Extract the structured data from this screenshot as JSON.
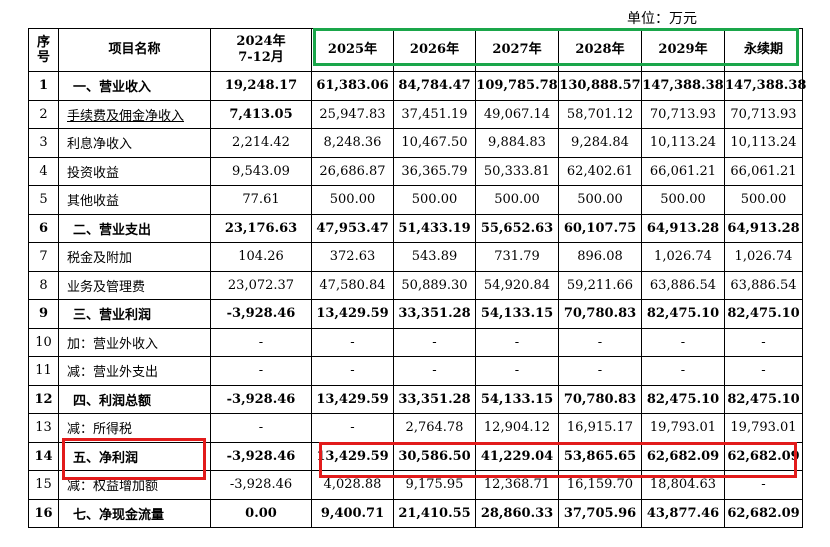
{
  "unit_label": "单位：万元",
  "headers": {
    "seq": "序号",
    "name": "项目名称",
    "c2024": "2024年\n7-12月",
    "years": [
      "2025年",
      "2026年",
      "2027年",
      "2028年",
      "2029年",
      "永续期"
    ]
  },
  "rows": [
    {
      "no": "1",
      "name": "一、营业收入",
      "bold": true,
      "vals": [
        "19,248.17",
        "61,383.06",
        "84,784.47",
        "109,785.78",
        "130,888.57",
        "147,388.38",
        "147,388.38"
      ]
    },
    {
      "no": "2",
      "name": "手续费及佣金净收入",
      "bold": false,
      "vals": [
        "7,413.05",
        "25,947.83",
        "37,451.19",
        "49,067.14",
        "58,701.12",
        "70,713.93",
        "70,713.93"
      ]
    },
    {
      "no": "3",
      "name": "利息净收入",
      "bold": false,
      "vals": [
        "2,214.42",
        "8,248.36",
        "10,467.50",
        "9,884.83",
        "9,284.84",
        "10,113.24",
        "10,113.24"
      ]
    },
    {
      "no": "4",
      "name": "投资收益",
      "bold": false,
      "vals": [
        "9,543.09",
        "26,686.87",
        "36,365.79",
        "50,333.81",
        "62,402.61",
        "66,061.21",
        "66,061.21"
      ]
    },
    {
      "no": "5",
      "name": "其他收益",
      "bold": false,
      "vals": [
        "77.61",
        "500.00",
        "500.00",
        "500.00",
        "500.00",
        "500.00",
        "500.00"
      ]
    },
    {
      "no": "6",
      "name": "二、营业支出",
      "bold": true,
      "vals": [
        "23,176.63",
        "47,953.47",
        "51,433.19",
        "55,652.63",
        "60,107.75",
        "64,913.28",
        "64,913.28"
      ]
    },
    {
      "no": "7",
      "name": "税金及附加",
      "bold": false,
      "vals": [
        "104.26",
        "372.63",
        "543.89",
        "731.79",
        "896.08",
        "1,026.74",
        "1,026.74"
      ]
    },
    {
      "no": "8",
      "name": "业务及管理费",
      "bold": false,
      "vals": [
        "23,072.37",
        "47,580.84",
        "50,889.30",
        "54,920.84",
        "59,211.66",
        "63,886.54",
        "63,886.54"
      ]
    },
    {
      "no": "9",
      "name": "三、营业利润",
      "bold": true,
      "vals": [
        "-3,928.46",
        "13,429.59",
        "33,351.28",
        "54,133.15",
        "70,780.83",
        "82,475.10",
        "82,475.10"
      ]
    },
    {
      "no": "10",
      "name": "加：营业外收入",
      "bold": false,
      "vals": [
        "-",
        "-",
        "-",
        "-",
        "-",
        "-",
        "-"
      ]
    },
    {
      "no": "11",
      "name": "减：营业外支出",
      "bold": false,
      "vals": [
        "-",
        "-",
        "-",
        "-",
        "-",
        "-",
        "-"
      ]
    },
    {
      "no": "12",
      "name": "四、利润总额",
      "bold": true,
      "vals": [
        "-3,928.46",
        "13,429.59",
        "33,351.28",
        "54,133.15",
        "70,780.83",
        "82,475.10",
        "82,475.10"
      ]
    },
    {
      "no": "13",
      "name": "减：所得税",
      "bold": false,
      "vals": [
        "-",
        "-",
        "2,764.78",
        "12,904.12",
        "16,915.17",
        "19,793.01",
        "19,793.01"
      ]
    },
    {
      "no": "14",
      "name": "五、净利润",
      "bold": true,
      "vals": [
        "-3,928.46",
        "13,429.59",
        "30,586.50",
        "41,229.04",
        "53,865.65",
        "62,682.09",
        "62,682.09"
      ]
    },
    {
      "no": "15",
      "name": "减：权益增加额",
      "bold": false,
      "vals": [
        "-3,928.46",
        "4,028.88",
        "9,175.95",
        "12,368.71",
        "16,159.70",
        "18,804.63",
        "-"
      ]
    },
    {
      "no": "16",
      "name": "七、净现金流量",
      "bold": true,
      "vals": [
        "0.00",
        "9,400.71",
        "21,410.55",
        "28,860.33",
        "37,705.96",
        "43,877.46",
        "62,682.09"
      ]
    }
  ],
  "colors": {
    "green_highlight": "#1aa64a",
    "red_highlight": "#e21b1b"
  }
}
